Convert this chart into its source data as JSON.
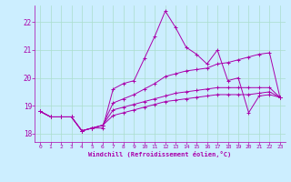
{
  "xlabel": "Windchill (Refroidissement éolien,°C)",
  "bg_color": "#cceeff",
  "grid_color": "#aaddcc",
  "line_color": "#aa00aa",
  "xlim": [
    -0.5,
    23.5
  ],
  "ylim": [
    17.7,
    22.6
  ],
  "xticks": [
    0,
    1,
    2,
    3,
    4,
    5,
    6,
    7,
    8,
    9,
    10,
    11,
    12,
    13,
    14,
    15,
    16,
    17,
    18,
    19,
    20,
    21,
    22,
    23
  ],
  "yticks": [
    18,
    19,
    20,
    21,
    22
  ],
  "series": [
    [
      18.8,
      18.6,
      18.6,
      18.6,
      18.1,
      18.2,
      18.2,
      19.6,
      19.8,
      19.9,
      20.7,
      21.5,
      22.4,
      21.8,
      21.1,
      20.85,
      20.5,
      21.0,
      19.9,
      20.0,
      18.75,
      19.35,
      19.4,
      19.3
    ],
    [
      18.8,
      18.6,
      18.6,
      18.6,
      18.1,
      18.2,
      18.3,
      19.1,
      19.25,
      19.4,
      19.6,
      19.8,
      20.05,
      20.15,
      20.25,
      20.3,
      20.35,
      20.5,
      20.55,
      20.65,
      20.75,
      20.85,
      20.9,
      19.3
    ],
    [
      18.8,
      18.6,
      18.6,
      18.6,
      18.1,
      18.2,
      18.3,
      18.85,
      18.95,
      19.05,
      19.15,
      19.25,
      19.35,
      19.45,
      19.5,
      19.55,
      19.6,
      19.65,
      19.65,
      19.65,
      19.65,
      19.65,
      19.65,
      19.3
    ],
    [
      18.8,
      18.6,
      18.6,
      18.6,
      18.1,
      18.2,
      18.3,
      18.65,
      18.75,
      18.85,
      18.95,
      19.05,
      19.15,
      19.2,
      19.25,
      19.3,
      19.35,
      19.4,
      19.4,
      19.4,
      19.4,
      19.45,
      19.5,
      19.3
    ]
  ]
}
